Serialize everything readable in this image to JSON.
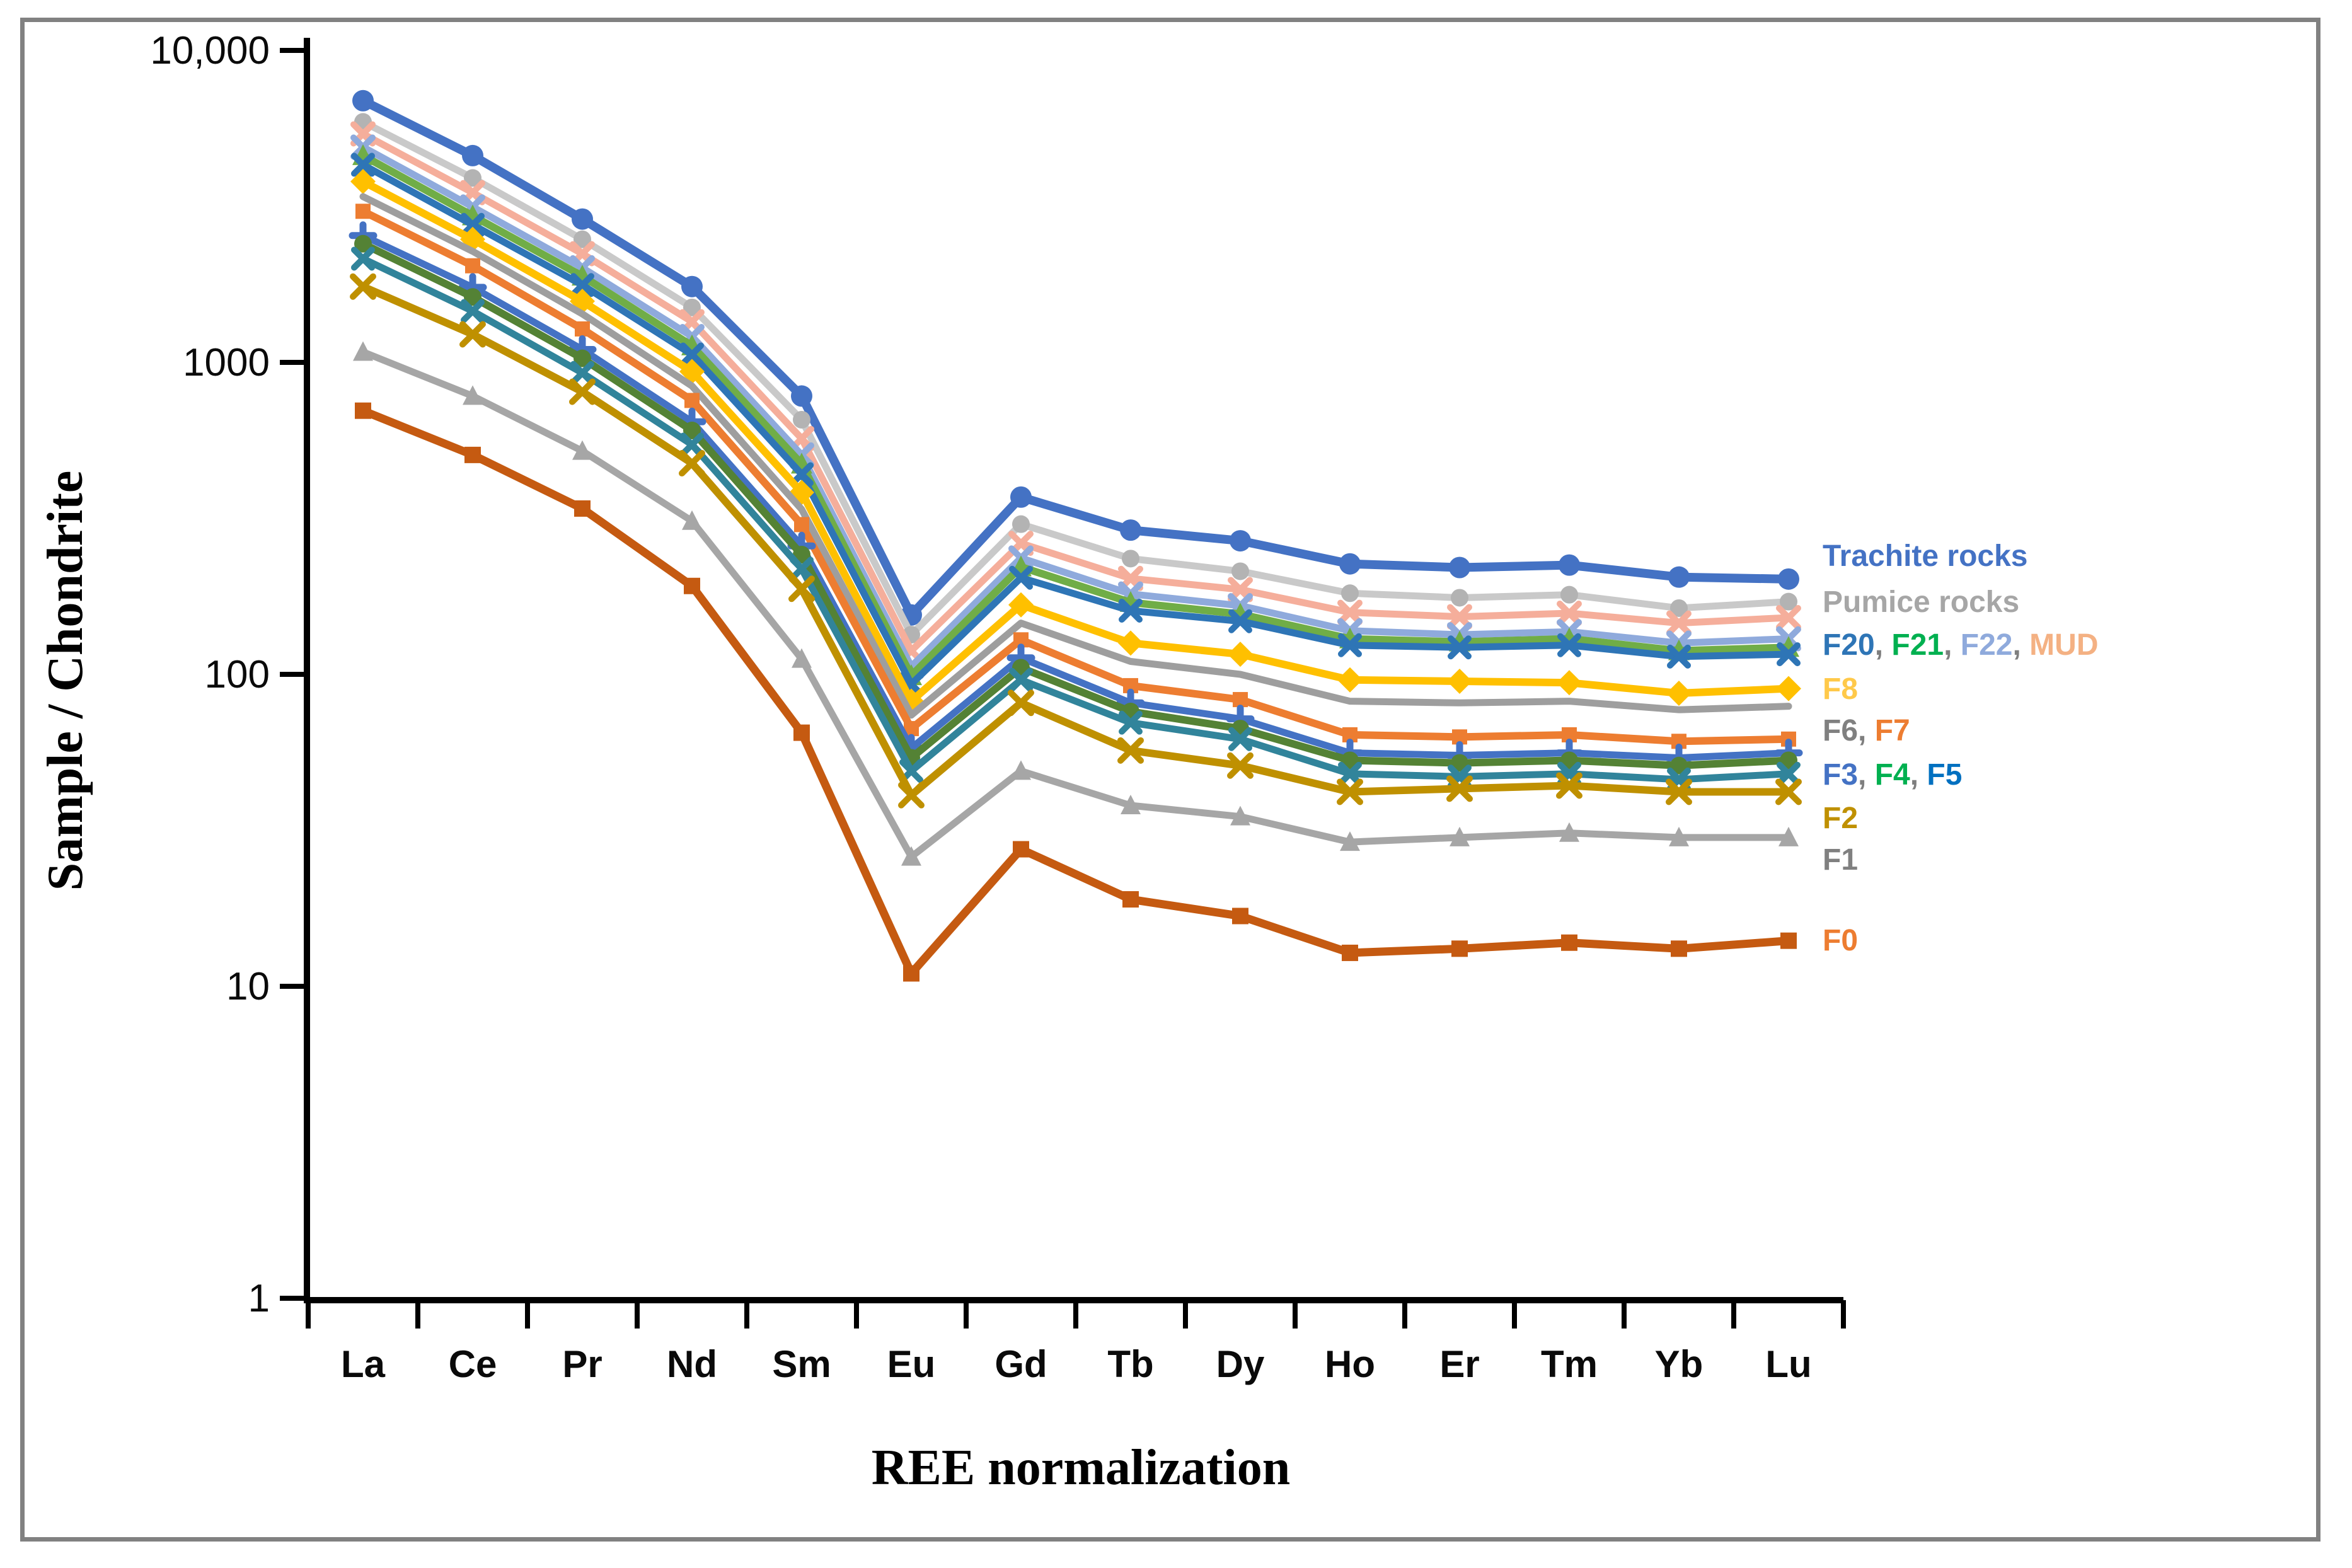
{
  "figure": {
    "background": "#FFFFFF",
    "border_color": "#818181"
  },
  "chart_data": {
    "type": "line",
    "title": "",
    "xlabel": "REE normalization",
    "ylabel": "Sample / Chondrite",
    "grid": "off",
    "legend_position": "right",
    "x_axis": {
      "categories": [
        "La",
        "Ce",
        "Pr",
        "Nd",
        "Sm",
        "Eu",
        "Gd",
        "Tb",
        "Dy",
        "Ho",
        "Er",
        "Tm",
        "Yb",
        "Lu"
      ]
    },
    "y_axis": {
      "scale": "log",
      "min": 1,
      "max": 10000,
      "ticks": [
        {
          "value": 10000,
          "label": "10,000"
        },
        {
          "value": 1000,
          "label": "1000"
        },
        {
          "value": 100,
          "label": "100"
        },
        {
          "value": 10,
          "label": "10"
        },
        {
          "value": 1,
          "label": "1"
        }
      ]
    },
    "series": [
      {
        "name": "Trachite rocks",
        "color": "#4472C4",
        "marker": "circle",
        "marker_size": 17,
        "line_width": 14,
        "values": [
          6900,
          4600,
          2880,
          1750,
          780,
          155,
          370,
          290,
          268,
          226,
          220,
          224,
          205,
          202
        ]
      },
      {
        "name": "Pumice rocks",
        "color": "#C9C9C9",
        "marker": "circle",
        "marker_color": "#B3B3B3",
        "marker_size": 14,
        "line_width": 11,
        "values": [
          5900,
          3900,
          2480,
          1500,
          655,
          134,
          303,
          235,
          214,
          182,
          176,
          180,
          163,
          171
        ]
      },
      {
        "name": "MUD",
        "color": "#F5AE9B",
        "marker": "x",
        "marker_size": 15,
        "line_width": 11,
        "values": [
          5400,
          3500,
          2230,
          1350,
          570,
          119,
          263,
          203,
          187,
          158,
          153,
          157,
          146,
          152
        ]
      },
      {
        "name": "F22",
        "color": "#8FAADC",
        "marker": "x",
        "marker_size": 15,
        "line_width": 11,
        "values": [
          4900,
          3150,
          2010,
          1210,
          505,
          106,
          236,
          181,
          166,
          138,
          134,
          137,
          126,
          130
        ]
      },
      {
        "name": "F21",
        "color": "#70AD47",
        "marker": "triangle",
        "marker_size": 15,
        "line_width": 12,
        "values": [
          4600,
          2950,
          1890,
          1130,
          472,
          99,
          221,
          170,
          156,
          130,
          127,
          130,
          119,
          122
        ]
      },
      {
        "name": "F20",
        "color": "#2E75B6",
        "marker": "x",
        "marker_size": 14,
        "line_width": 11,
        "values": [
          4300,
          2760,
          1770,
          1060,
          438,
          93,
          204,
          160,
          148,
          124,
          122,
          124,
          114,
          116
        ]
      },
      {
        "name": "F8",
        "color": "#FFC000",
        "marker": "diamond",
        "marker_size": 16,
        "line_width": 12,
        "values": [
          3800,
          2480,
          1570,
          935,
          383,
          82,
          167,
          126,
          116,
          96,
          95,
          94,
          87,
          90
        ]
      },
      {
        "name": "F6",
        "color": "#9E9E9E",
        "marker": "none",
        "marker_size": 0,
        "line_width": 11,
        "values": [
          3400,
          2270,
          1430,
          840,
          338,
          74,
          146,
          110,
          100,
          82,
          81,
          82,
          77,
          79
        ]
      },
      {
        "name": "F7",
        "color": "#ED7D31",
        "marker": "square",
        "marker_size": 12,
        "line_width": 12,
        "values": [
          3050,
          2040,
          1280,
          755,
          302,
          67,
          129,
          92,
          83,
          64,
          63,
          64,
          61,
          62
        ]
      },
      {
        "name": "F3",
        "color": "#4472C4",
        "marker": "plus",
        "marker_size": 15,
        "line_width": 11,
        "values": [
          2550,
          1740,
          1100,
          645,
          258,
          58,
          113,
          81,
          72,
          56,
          55,
          56,
          54,
          56
        ]
      },
      {
        "name": "F4",
        "color": "#548235",
        "marker": "circle",
        "marker_size": 14,
        "line_width": 12,
        "values": [
          2400,
          1620,
          1030,
          605,
          242,
          54,
          105,
          76,
          67,
          53,
          52,
          53,
          51,
          53
        ]
      },
      {
        "name": "F5",
        "color": "#31849B",
        "marker": "x",
        "marker_size": 14,
        "line_width": 11,
        "values": [
          2150,
          1460,
          925,
          545,
          218,
          49,
          96,
          70,
          62,
          48,
          47,
          48,
          46,
          48
        ]
      },
      {
        "name": "F2",
        "color": "#BF9000",
        "marker": "x",
        "marker_size": 16,
        "line_width": 12,
        "values": [
          1750,
          1230,
          805,
          475,
          188,
          41,
          81,
          57,
          51,
          42,
          43,
          44,
          42,
          42
        ]
      },
      {
        "name": "F1",
        "color": "#A6A6A6",
        "marker": "triangle",
        "marker_size": 14,
        "line_width": 11,
        "values": [
          1080,
          780,
          520,
          310,
          112,
          26,
          49,
          38,
          35,
          29,
          30,
          31,
          30,
          30
        ]
      },
      {
        "name": "F0",
        "color": "#C55A11",
        "marker": "square",
        "marker_size": 13,
        "line_width": 13,
        "values": [
          700,
          505,
          340,
          192,
          65,
          11,
          27.5,
          19,
          16.8,
          12.8,
          13.2,
          13.8,
          13.2,
          14
        ]
      }
    ]
  },
  "legend": {
    "separator": ", ",
    "separator_color": "#7F7F7F",
    "rows": [
      {
        "segments": [
          {
            "text": "Trachite rocks",
            "color": "#4472C4"
          }
        ]
      },
      {
        "segments": [
          {
            "text": "Pumice rocks",
            "color": "#A6A6A6"
          }
        ]
      },
      {
        "segments": [
          {
            "text": "F20",
            "color": "#2E75B6"
          },
          {
            "text": ", ",
            "color": "#7F7F7F"
          },
          {
            "text": "F21",
            "color": "#00B050"
          },
          {
            "text": ", ",
            "color": "#7F7F7F"
          },
          {
            "text": "F22",
            "color": "#8FAADC"
          },
          {
            "text": ", ",
            "color": "#7F7F7F"
          },
          {
            "text": "MUD",
            "color": "#F4B183"
          }
        ]
      },
      {
        "segments": [
          {
            "text": "F8",
            "color": "#FFC94A"
          }
        ]
      },
      {
        "segments": [
          {
            "text": "F6",
            "color": "#808080"
          },
          {
            "text": ", ",
            "color": "#7F7F7F"
          },
          {
            "text": "F7",
            "color": "#ED7D31"
          }
        ]
      },
      {
        "segments": [
          {
            "text": "F3",
            "color": "#4472C4"
          },
          {
            "text": ", ",
            "color": "#7F7F7F"
          },
          {
            "text": "F4",
            "color": "#00B050"
          },
          {
            "text": ", ",
            "color": "#7F7F7F"
          },
          {
            "text": "F5",
            "color": "#0070C0"
          }
        ]
      },
      {
        "segments": [
          {
            "text": "F2",
            "color": "#BF9000"
          }
        ]
      },
      {
        "segments": [
          {
            "text": "F1",
            "color": "#808080"
          }
        ]
      },
      {
        "segments": [
          {
            "text": "F0",
            "color": "#ED7D31"
          }
        ]
      }
    ]
  }
}
